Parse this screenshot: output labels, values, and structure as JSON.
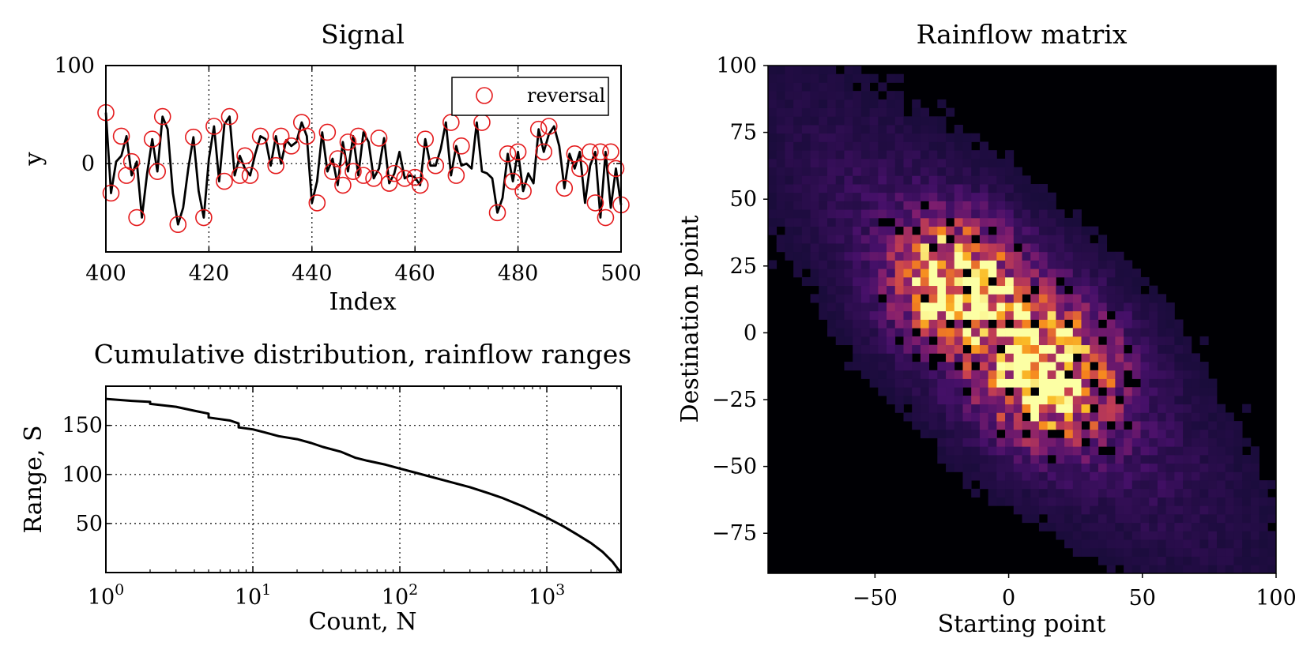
{
  "figure": {
    "panels": [
      "signal",
      "cdf",
      "matrix"
    ]
  },
  "chart_data": [
    {
      "id": "signal",
      "type": "line",
      "title": "Signal",
      "xlabel": "Index",
      "ylabel": "y",
      "xlim": [
        400,
        500
      ],
      "ylim": [
        -90,
        100
      ],
      "xticks": [
        "400",
        "420",
        "440",
        "460",
        "480",
        "500"
      ],
      "yticks": [
        "100",
        "0"
      ],
      "grid": "x dotted, y=0 dotted",
      "legend": {
        "position": "top-right",
        "entries": [
          "reversal"
        ]
      },
      "colors": {
        "line": "#000000",
        "marker": "#e41a1c"
      },
      "series": [
        {
          "type": "line",
          "x": [
            400,
            401,
            402,
            403,
            404,
            405,
            406,
            407,
            408,
            409,
            410,
            411,
            412,
            413,
            414,
            415,
            416,
            417,
            418,
            419,
            420,
            421,
            422,
            423,
            424,
            425,
            426,
            427,
            428,
            429,
            430,
            431,
            432,
            433,
            434,
            435,
            436,
            437,
            438,
            439,
            440,
            441,
            442,
            443,
            444,
            445,
            446,
            447,
            448,
            449,
            450,
            451,
            452,
            453,
            454,
            455,
            456,
            457,
            458,
            459,
            460,
            461,
            462,
            463,
            464,
            465,
            466,
            467,
            468,
            469,
            470,
            471,
            472,
            473,
            474,
            475,
            476,
            477,
            478,
            479,
            480,
            481,
            482,
            483,
            484,
            485,
            486,
            487,
            488,
            489,
            490,
            491,
            492,
            493,
            494,
            495,
            496,
            497,
            498,
            499,
            500
          ],
          "y": [
            52,
            -30,
            2,
            8,
            28,
            -12,
            2,
            -55,
            -10,
            25,
            -8,
            48,
            35,
            -30,
            -62,
            -45,
            -5,
            27,
            -28,
            -55,
            5,
            38,
            -18,
            40,
            48,
            -12,
            8,
            -5,
            -12,
            10,
            28,
            25,
            -2,
            28,
            0,
            24,
            18,
            22,
            42,
            28,
            -40,
            -18,
            32,
            -8,
            5,
            -22,
            22,
            -8,
            28,
            -12,
            32,
            22,
            -15,
            -5,
            26,
            -20,
            -10,
            12,
            -15,
            -12,
            -14,
            -22,
            25,
            -2,
            -2,
            15,
            42,
            -12,
            18,
            -2,
            0,
            -5,
            42,
            -8,
            -10,
            -15,
            -50,
            -35,
            10,
            -18,
            12,
            -28,
            -10,
            -20,
            35,
            12,
            30,
            38,
            18,
            -25,
            10,
            -5,
            12,
            -40,
            -2,
            12,
            -55,
            12,
            -45,
            -5,
            -42
          ]
        },
        {
          "type": "scatter",
          "name": "reversal",
          "x": [
            400,
            401,
            403,
            404,
            405,
            406,
            409,
            410,
            411,
            414,
            417,
            419,
            421,
            423,
            424,
            426,
            427,
            428,
            430,
            433,
            434,
            436,
            438,
            439,
            441,
            443,
            444,
            445,
            446,
            447,
            448,
            449,
            450,
            452,
            453,
            455,
            456,
            458,
            460,
            461,
            462,
            464,
            467,
            468,
            469,
            473,
            476,
            478,
            479,
            480,
            481,
            484,
            485,
            486,
            489,
            491,
            492,
            494,
            495,
            496,
            497,
            498,
            499,
            500
          ],
          "y": [
            52,
            -30,
            28,
            -12,
            2,
            -55,
            25,
            -8,
            48,
            -62,
            27,
            -55,
            38,
            -18,
            48,
            -12,
            8,
            -12,
            28,
            -2,
            28,
            18,
            42,
            28,
            -40,
            32,
            -8,
            5,
            -22,
            22,
            -8,
            28,
            -12,
            -15,
            26,
            -20,
            -10,
            -15,
            -14,
            -22,
            25,
            -2,
            42,
            -12,
            18,
            42,
            -50,
            10,
            -18,
            12,
            -28,
            35,
            12,
            38,
            -25,
            10,
            -5,
            12,
            -40,
            12,
            -55,
            12,
            -5,
            -42
          ]
        }
      ]
    },
    {
      "id": "cdf",
      "type": "line",
      "title": "Cumulative distribution, rainflow ranges",
      "xlabel": "Count, N",
      "ylabel": "Range, S",
      "xscale": "log",
      "xlim": [
        1,
        3200
      ],
      "ylim": [
        0,
        190
      ],
      "xticks": [
        {
          "base": "10",
          "exp": "0"
        },
        {
          "base": "10",
          "exp": "1"
        },
        {
          "base": "10",
          "exp": "2"
        },
        {
          "base": "10",
          "exp": "3"
        }
      ],
      "yticks": [
        "150",
        "100",
        "50"
      ],
      "grid": "dotted",
      "series": [
        {
          "x": [
            1,
            1.5,
            2,
            2,
            3,
            4,
            5,
            5,
            7,
            8,
            8,
            10,
            12,
            15,
            20,
            25,
            30,
            40,
            50,
            60,
            80,
            100,
            150,
            200,
            300,
            400,
            500,
            700,
            1000,
            1300,
            1600,
            2000,
            2400,
            2800,
            3000,
            3200
          ],
          "y": [
            177,
            175,
            174,
            172,
            169,
            165,
            162,
            158,
            155,
            152,
            148,
            146,
            143,
            139,
            136,
            132,
            128,
            123,
            117,
            114,
            110,
            106,
            99,
            94,
            87,
            81,
            76,
            67,
            56,
            47,
            39,
            30,
            21,
            11,
            5,
            0
          ]
        }
      ]
    },
    {
      "id": "matrix",
      "type": "heatmap",
      "title": "Rainflow matrix",
      "xlabel": "Starting point",
      "ylabel": "Destination point",
      "xlim": [
        -90,
        100
      ],
      "ylim": [
        -90,
        100
      ],
      "xticks": [
        "−50",
        "0",
        "50",
        "100"
      ],
      "yticks": [
        "100",
        "75",
        "50",
        "25",
        "0",
        "−25",
        "−50",
        "−75"
      ],
      "colormap": "inferno",
      "colors": {
        "background": "#000004",
        "low": "#2a0a50",
        "mid": "#a83262",
        "high": "#f8a21a",
        "max": "#fcffa4"
      },
      "distribution": {
        "clusters": [
          {
            "center": [
              -20,
              18
            ],
            "spread": [
              16,
              16
            ],
            "weight": 1
          },
          {
            "center": [
              15,
              -15
            ],
            "spread": [
              18,
              18
            ],
            "weight": 1
          }
        ],
        "correlation": "negative, along y = -x",
        "extent": [
          -90,
          100
        ]
      }
    }
  ]
}
